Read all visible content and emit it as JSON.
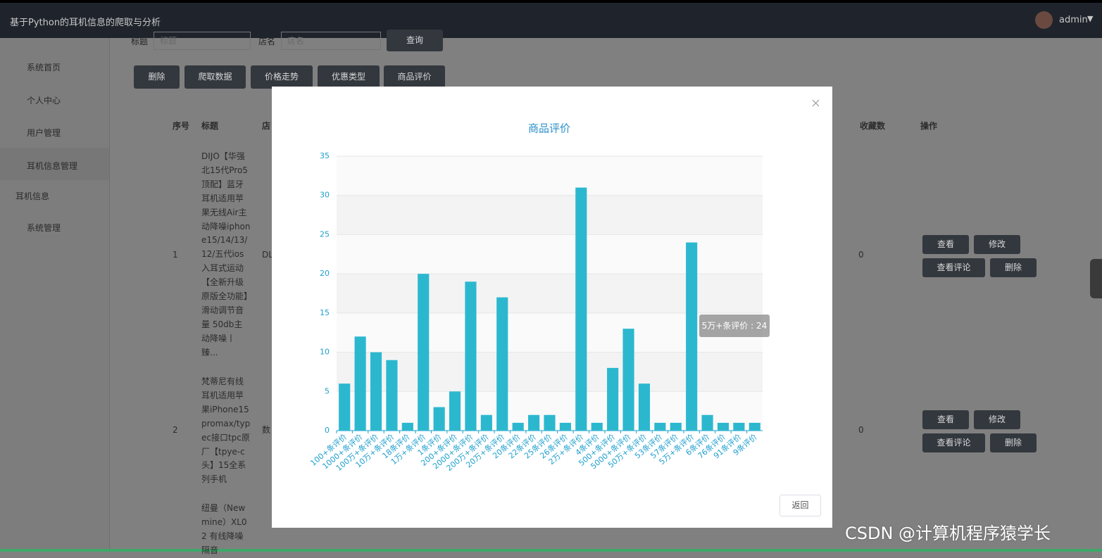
{
  "header": {
    "title": "基于Python的耳机信息的爬取与分析",
    "user": "admin"
  },
  "sidebar": {
    "items": [
      "系统首页",
      "个人中心",
      "用户管理",
      "耳机信息管理",
      "耳机信息",
      "系统管理"
    ]
  },
  "search": {
    "labels": [
      "标题",
      "店名"
    ],
    "placeholders": [
      "标题",
      "店名"
    ],
    "button": "查询"
  },
  "toolbar": [
    "删除",
    "爬取数据",
    "价格走势",
    "优惠类型",
    "商品评价"
  ],
  "table": {
    "headers": [
      "序号",
      "标题",
      "店",
      "收藏数",
      "操作"
    ],
    "rows": [
      [
        "1",
        "DIJO【华强北15代Pro5顶配】蓝牙耳机适用苹果无线Air主动降噪iphone15/14/13/12/五代ios入耳式运动【全新升级原版全功能】滑动调节音量 50db主动降噪丨臻...",
        "DL",
        "0"
      ],
      [
        "2",
        "梵蒂尼有线耳机适用苹果iPhone15promax/typec接口tpc原厂【tpye-c头】15全系列手机",
        "数",
        "0"
      ],
      [
        "",
        "纽曼（Newmine）XL02 有线降噪隔音",
        "",
        ""
      ]
    ],
    "actions": [
      "查看",
      "修改",
      "查看评论",
      "删除"
    ]
  },
  "modal": {
    "button": "返回"
  },
  "chart_data": {
    "type": "bar",
    "title": "商品评价",
    "categories": [
      "100+条评价",
      "1000+条评价",
      "100万+条评价",
      "10万+条评价",
      "18条评价",
      "1万+条评价",
      "1条评价",
      "200+条评价",
      "2000+条评价",
      "200万+条评价",
      "20万+条评价",
      "20条评价",
      "22条评价",
      "25条评价",
      "26条评价",
      "2万+条评价",
      "4条评价",
      "500+条评价",
      "5000+条评价",
      "50万+条评价",
      "53条评价",
      "57条评价",
      "5万+条评价",
      "6条评价",
      "76条评价",
      "91条评价",
      "9条评价"
    ],
    "values": [
      6,
      12,
      10,
      9,
      1,
      20,
      3,
      5,
      19,
      2,
      17,
      1,
      2,
      2,
      1,
      31,
      1,
      8,
      13,
      6,
      1,
      1,
      24,
      2,
      1,
      1,
      1
    ],
    "color": "#2bb8cf",
    "ylim": [
      0,
      35
    ],
    "yticks": [
      0,
      5,
      10,
      15,
      20,
      25,
      30,
      35
    ],
    "grid": true,
    "tooltip": "5万+条评价 : 24"
  },
  "watermark": "CSDN @计算机程序猿学长"
}
